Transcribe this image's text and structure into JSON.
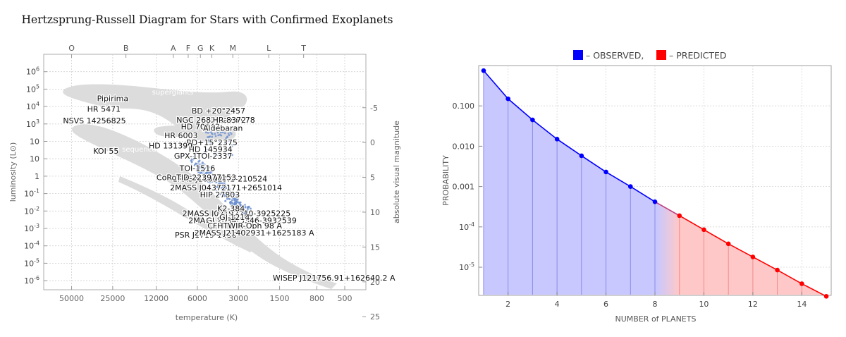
{
  "chart_data": [
    {
      "type": "scatter",
      "title": "Hertzsprung-Russell Diagram for Stars with Confirmed Exoplanets",
      "xlabel": "temperature (K)",
      "ylabel": "luminosity (L⊙)",
      "y2label": "absolute visual magnitude",
      "x_scale": "log",
      "x_reversed": true,
      "y_scale": "log",
      "xlim": [
        80000,
        350
      ],
      "ylim": [
        3e-07,
        10000000.0
      ],
      "grid": true,
      "x_ticks": [
        50000,
        25000,
        12000,
        6000,
        3000,
        1500,
        800,
        500
      ],
      "x_tick_labels": [
        "50000",
        "25000",
        "12000",
        "6000",
        "3000",
        "1500",
        "800",
        "500"
      ],
      "y_ticks": [
        1000000.0,
        100000.0,
        10000.0,
        1000.0,
        100,
        10,
        1,
        0.1,
        0.01,
        0.001,
        0.0001,
        1e-05,
        1e-06
      ],
      "y_tick_labels": [
        {
          "base": "10",
          "exp": "6"
        },
        {
          "base": "10",
          "exp": "5"
        },
        {
          "base": "10",
          "exp": "4"
        },
        {
          "base": "10",
          "exp": "3"
        },
        {
          "base": "10",
          "exp": ""
        },
        {
          "base": "10",
          "exp": ""
        },
        {
          "base": "1",
          "exp": ""
        },
        {
          "base": "10",
          "exp": "-1"
        },
        {
          "base": "10",
          "exp": "-2"
        },
        {
          "base": "10",
          "exp": "-3"
        },
        {
          "base": "10",
          "exp": "-4"
        },
        {
          "base": "10",
          "exp": "-5"
        },
        {
          "base": "10",
          "exp": "-6"
        }
      ],
      "y2_ticks": [
        -5,
        0,
        5,
        10,
        15,
        20,
        25
      ],
      "y2_tick_labels": [
        "-5",
        "0",
        "5",
        "10",
        "15",
        "20",
        "25"
      ],
      "spectral_classes": [
        {
          "label": "O",
          "temp": 50000
        },
        {
          "label": "B",
          "temp": 20000
        },
        {
          "label": "A",
          "temp": 9000
        },
        {
          "label": "F",
          "temp": 7000
        },
        {
          "label": "G",
          "temp": 5700
        },
        {
          "label": "K",
          "temp": 4700
        },
        {
          "label": "M",
          "temp": 3300
        },
        {
          "label": "L",
          "temp": 1800
        },
        {
          "label": "T",
          "temp": 1000
        }
      ],
      "region_labels": [
        "supergiants",
        "main sequence"
      ],
      "annotations": [
        {
          "text": "Pipirima",
          "temp": 25000,
          "lum": 20000
        },
        {
          "text": "HR 5471",
          "temp": 29000,
          "lum": 5000
        },
        {
          "text": "NSVS 14256825",
          "temp": 34000,
          "lum": 1100
        },
        {
          "text": "BD +20°2457",
          "temp": 4200,
          "lum": 4000
        },
        {
          "text": "NGC 2682 Sand 978",
          "temp": 4400,
          "lum": 1200
        },
        {
          "text": "HR 8372",
          "temp": 3500,
          "lum": 1200
        },
        {
          "text": "HD 70642",
          "temp": 5700,
          "lum": 480
        },
        {
          "text": "Aldebaran",
          "temp": 3900,
          "lum": 400
        },
        {
          "text": "HR 6003",
          "temp": 7900,
          "lum": 150
        },
        {
          "text": "BD+15°2375",
          "temp": 4700,
          "lum": 60
        },
        {
          "text": "KOI 55",
          "temp": 28000,
          "lum": 20
        },
        {
          "text": "HD 131399",
          "temp": 9400,
          "lum": 40
        },
        {
          "text": "HD 145934",
          "temp": 4800,
          "lum": 25
        },
        {
          "text": "GPX-1",
          "temp": 7300,
          "lum": 10
        },
        {
          "text": "TOI-2337",
          "temp": 4500,
          "lum": 10
        },
        {
          "text": "TOI-1516",
          "temp": 6000,
          "lum": 2
        },
        {
          "text": "1RXS J160929.1-210524",
          "temp": 4100,
          "lum": 0.5
        },
        {
          "text": "CoRoTID 223977153",
          "temp": 6100,
          "lum": 0.6
        },
        {
          "text": "2MASS J04372171+2651014",
          "temp": 3700,
          "lum": 0.15
        },
        {
          "text": "HIP 27803",
          "temp": 4100,
          "lum": 0.06
        },
        {
          "text": "2MASS J02192210-3925225",
          "temp": 3100,
          "lum": 0.005
        },
        {
          "text": "K2-384",
          "temp": 3400,
          "lum": 0.01
        },
        {
          "text": "2MASS J12073346-3932539",
          "temp": 2800,
          "lum": 0.002
        },
        {
          "text": "GJ 2034",
          "temp": 4000,
          "lum": 0.002
        },
        {
          "text": "GJ 1214",
          "temp": 3200,
          "lum": 0.003
        },
        {
          "text": "CFHTWIR-Oph 98 A",
          "temp": 2700,
          "lum": 0.001
        },
        {
          "text": "PSR J1719-1438",
          "temp": 5200,
          "lum": 0.0003
        },
        {
          "text": "2MASS J21402931+1625183 A",
          "temp": 2300,
          "lum": 0.0004
        },
        {
          "text": "WISEP J121756.91+162640.2 A",
          "temp": 600,
          "lum": 1e-06
        }
      ]
    },
    {
      "type": "area",
      "title": "",
      "legend": [
        {
          "label": "– OBSERVED,",
          "color": "#0000ff"
        },
        {
          "label": "– PREDICTED",
          "color": "#ff0000"
        }
      ],
      "legend_position": "top-center",
      "xlabel": "NUMBER of PLANETS",
      "ylabel": "PROBABILITY",
      "y_scale": "log",
      "xlim": [
        0.8,
        15.2
      ],
      "ylim": [
        2e-06,
        1
      ],
      "grid": true,
      "x_ticks": [
        2,
        4,
        6,
        8,
        10,
        12,
        14
      ],
      "x_tick_labels": [
        "2",
        "4",
        "6",
        "8",
        "10",
        "12",
        "14"
      ],
      "y_ticks": [
        0.1,
        0.01,
        0.001,
        0.0001,
        1e-05
      ],
      "y_tick_labels": [
        {
          "base": "0.100",
          "exp": ""
        },
        {
          "base": "0.010",
          "exp": ""
        },
        {
          "base": "0.001",
          "exp": ""
        },
        {
          "base": "10",
          "exp": "-4"
        },
        {
          "base": "10",
          "exp": "-5"
        }
      ],
      "series": [
        {
          "name": "OBSERVED",
          "color": "#0000ff",
          "x": [
            1,
            2,
            3,
            4,
            5,
            6,
            7,
            8
          ],
          "y": [
            0.75,
            0.15,
            0.045,
            0.015,
            0.0058,
            0.0023,
            0.001,
            0.00042
          ]
        },
        {
          "name": "PREDICTED",
          "color": "#ff0000",
          "x": [
            9,
            10,
            11,
            12,
            13,
            14,
            15
          ],
          "y": [
            0.00019,
            8.5e-05,
            3.8e-05,
            1.8e-05,
            8.5e-06,
            3.9e-06,
            1.9e-06
          ]
        }
      ]
    }
  ]
}
